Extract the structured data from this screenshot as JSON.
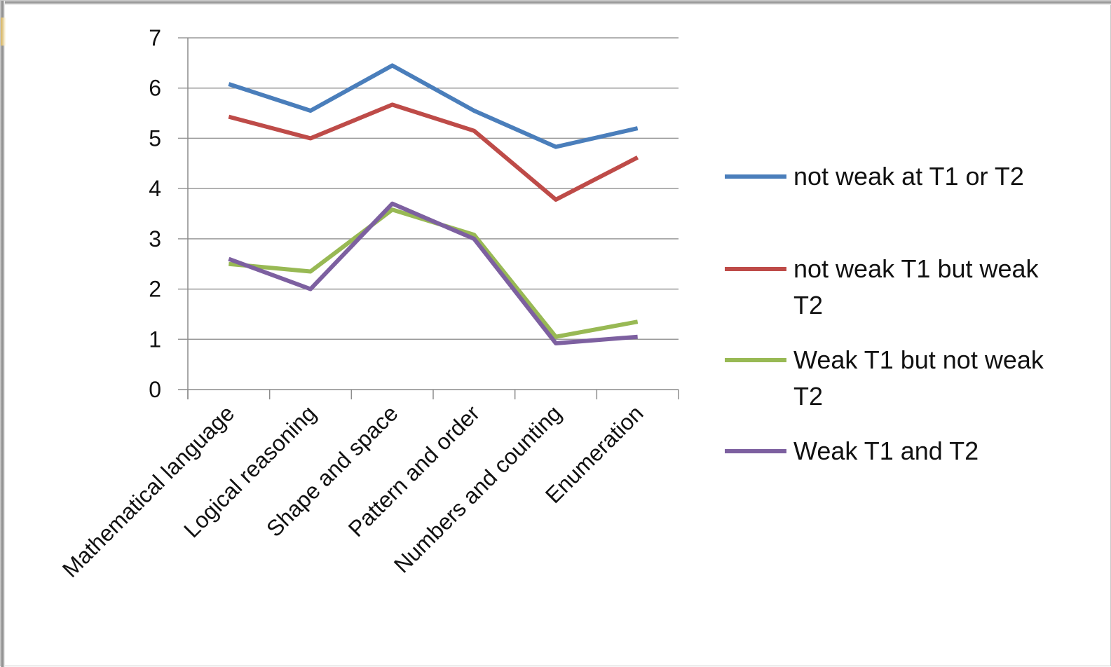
{
  "chart_data": {
    "type": "line",
    "title": "",
    "xlabel": "",
    "ylabel": "",
    "ylim": [
      0,
      7
    ],
    "yticks": [
      0,
      1,
      2,
      3,
      4,
      5,
      6,
      7
    ],
    "grid": true,
    "legend_position": "right",
    "categories": [
      "Mathematical language",
      "Logical reasoning",
      "Shape and space",
      "Pattern and order",
      "Numbers and counting",
      "Enumeration"
    ],
    "series": [
      {
        "name": "not weak at T1 or T2",
        "legend_lines": [
          "not weak at T1 or T2"
        ],
        "color": "#4a7ebb",
        "values": [
          6.08,
          5.55,
          6.45,
          5.55,
          4.83,
          5.2
        ]
      },
      {
        "name": "not weak T1 but weak T2",
        "legend_lines": [
          "not weak T1 but weak",
          "T2"
        ],
        "color": "#be4b48",
        "values": [
          5.43,
          5.0,
          5.67,
          5.15,
          3.78,
          4.62
        ]
      },
      {
        "name": "Weak T1 but not weak T2",
        "legend_lines": [
          "Weak T1 but not weak",
          "T2"
        ],
        "color": "#98b954",
        "values": [
          2.5,
          2.35,
          3.58,
          3.08,
          1.05,
          1.35
        ]
      },
      {
        "name": "Weak T1 and T2",
        "legend_lines": [
          "Weak T1 and T2"
        ],
        "color": "#7d60a0",
        "values": [
          2.6,
          2.0,
          3.7,
          3.0,
          0.92,
          1.05
        ]
      }
    ]
  }
}
